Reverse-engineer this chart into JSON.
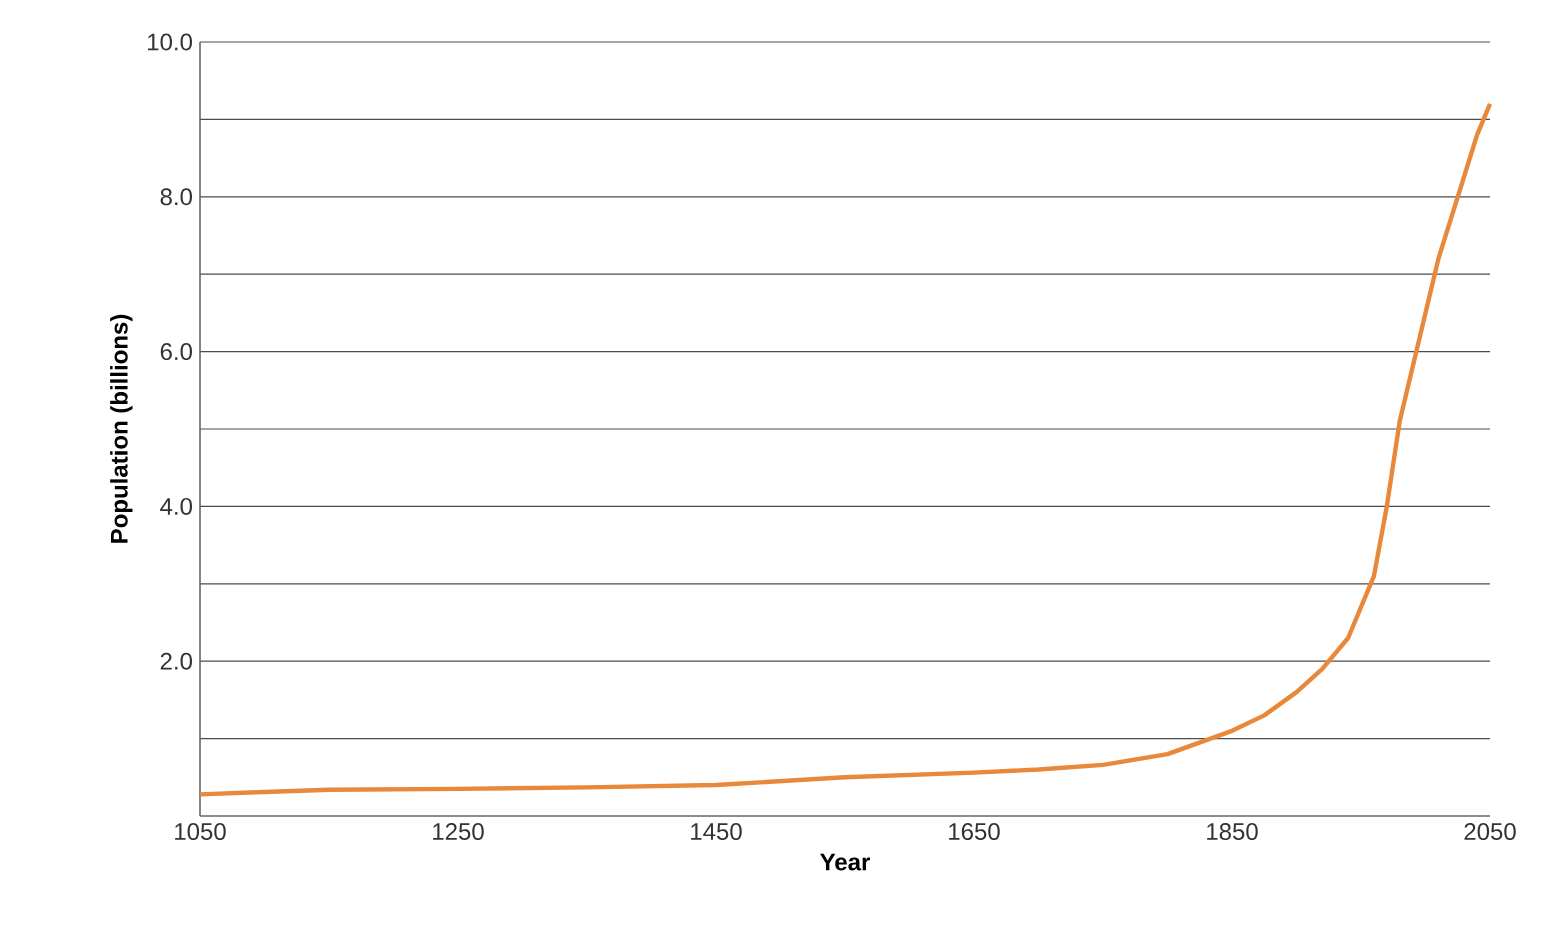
{
  "chart_data": {
    "type": "line",
    "xlabel": "Year",
    "ylabel": "Population (billions)",
    "x": [
      1050,
      1100,
      1150,
      1250,
      1350,
      1450,
      1550,
      1650,
      1700,
      1750,
      1800,
      1850,
      1875,
      1900,
      1920,
      1940,
      1950,
      1960,
      1970,
      1980,
      1990,
      2000,
      2010,
      2025,
      2040,
      2050
    ],
    "series": [
      {
        "color": "#e8883a",
        "values": [
          0.28,
          0.31,
          0.34,
          0.35,
          0.37,
          0.4,
          0.5,
          0.56,
          0.6,
          0.66,
          0.8,
          1.1,
          1.3,
          1.6,
          1.9,
          2.3,
          2.7,
          3.1,
          4.0,
          5.1,
          5.8,
          6.5,
          7.2,
          8.0,
          8.8,
          9.2
        ]
      }
    ],
    "xlim": [
      1050,
      2050
    ],
    "xticks": [
      1050,
      1250,
      1450,
      1650,
      1850,
      2050
    ],
    "ylim": [
      0,
      10
    ],
    "yticks": [
      {
        "value": 1,
        "label": null
      },
      {
        "value": 2,
        "label": "2.0"
      },
      {
        "value": 3,
        "label": null
      },
      {
        "value": 4,
        "label": "4.0"
      },
      {
        "value": 5,
        "label": null
      },
      {
        "value": 6,
        "label": "6.0"
      },
      {
        "value": 7,
        "label": null
      },
      {
        "value": 8,
        "label": "8.0"
      },
      {
        "value": 9,
        "label": null
      },
      {
        "value": 10,
        "label": "10.0"
      }
    ],
    "grid": "y",
    "marker": "none",
    "line_style": "solid"
  }
}
